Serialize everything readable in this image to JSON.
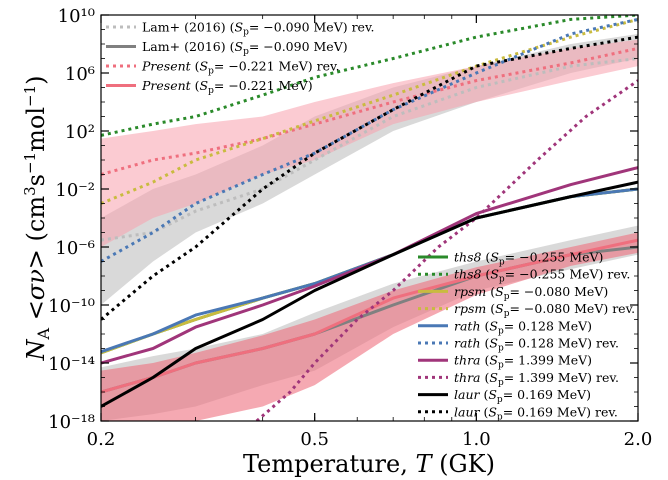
{
  "chart_data": {
    "type": "line",
    "xlabel": "Temperature, T (GK)",
    "ylabel": "N_A <σν> (cm³s⁻¹mol⁻¹)",
    "xscale": "log",
    "yscale": "log",
    "xlim": [
      0.2,
      2.0
    ],
    "ylim": [
      1e-18,
      10000000000.0
    ],
    "x_ticks": [
      0.2,
      0.5,
      1.0,
      2.0
    ],
    "x_tick_labels": [
      "0.2",
      "0.5",
      "1.0",
      "2.0"
    ],
    "y_ticks": [
      1e-18,
      1e-14,
      1e-10,
      1e-06,
      0.01,
      100.0,
      1000000.0,
      10000000000.0
    ],
    "y_tick_labels": [
      "10⁻¹⁸",
      "10⁻¹⁴",
      "10⁻¹⁰",
      "10⁻⁶",
      "10⁻²",
      "10²",
      "10⁶",
      "10¹⁰"
    ],
    "legend_upper": [
      {
        "label": "Lam+ (2016) (S_p= −0.090 MeV) rev.",
        "color": "#bdbdbd",
        "style": "dotted"
      },
      {
        "label": "Lam+ (2016) (S_p= −0.090 MeV)",
        "color": "#808080",
        "style": "solid"
      },
      {
        "label": "Present (S_p= −0.221 MeV) rev.",
        "color": "#ef6f7e",
        "style": "dotted"
      },
      {
        "label": "Present (S_p= −0.221 MeV)",
        "color": "#ef6f7e",
        "style": "solid"
      }
    ],
    "legend_lower": [
      {
        "label": "ths8 (S_p= −0.255 MeV)",
        "color": "#2a8a2a",
        "style": "solid"
      },
      {
        "label": "ths8 (S_p= −0.255 MeV) rev.",
        "color": "#2a8a2a",
        "style": "dotted"
      },
      {
        "label": "rpsm (S_p= −0.080 MeV)",
        "color": "#c9bb3f",
        "style": "solid"
      },
      {
        "label": "rpsm (S_p= −0.080 MeV) rev.",
        "color": "#c9bb3f",
        "style": "dotted"
      },
      {
        "label": "rath (S_p= 0.128 MeV)",
        "color": "#4a78b5",
        "style": "solid"
      },
      {
        "label": "rath (S_p= 0.128 MeV) rev.",
        "color": "#4a78b5",
        "style": "dotted"
      },
      {
        "label": "thra (S_p= 1.399 MeV)",
        "color": "#a0357a",
        "style": "solid"
      },
      {
        "label": "thra (S_p= 1.399 MeV) rev.",
        "color": "#a0357a",
        "style": "dotted"
      },
      {
        "label": "laur (S_p= 0.169 MeV)",
        "color": "#000000",
        "style": "solid"
      },
      {
        "label": "laur (S_p= 0.169 MeV) rev.",
        "color": "#000000",
        "style": "dotted"
      }
    ],
    "bands": [
      {
        "name": "Lam+ (2016) rev. band",
        "color": "#c0c0c0",
        "opacity": 0.6,
        "x": [
          0.2,
          0.25,
          0.3,
          0.4,
          0.5,
          0.7,
          1.0,
          1.5,
          2.0
        ],
        "upper": [
          0.0001,
          0.01,
          0.1,
          10.0,
          1000.0,
          100000.0,
          3000000.0,
          100000000.0,
          500000000.0
        ],
        "lower": [
          1e-10,
          1e-07,
          1e-05,
          0.001,
          0.1,
          100.0,
          10000.0,
          1000000.0,
          10000000.0
        ]
      },
      {
        "name": "Present rev. band",
        "color": "#f7a1ad",
        "opacity": 0.55,
        "x": [
          0.2,
          0.25,
          0.3,
          0.4,
          0.5,
          0.7,
          1.0,
          1.5,
          2.0
        ],
        "upper": [
          30.0,
          100.0,
          300.0,
          1000.0,
          10000.0,
          200000.0,
          3000000.0,
          50000000.0,
          200000000.0
        ],
        "lower": [
          1e-06,
          0.0001,
          0.001,
          0.1,
          1.0,
          300.0,
          10000.0,
          300000.0,
          3000000.0
        ]
      },
      {
        "name": "Lam+ (2016) band",
        "color": "#c0c0c0",
        "opacity": 0.6,
        "x": [
          0.2,
          0.25,
          0.3,
          0.4,
          0.5,
          0.7,
          1.0,
          1.5,
          2.0
        ],
        "upper": [
          5e-15,
          3e-14,
          1e-13,
          1e-12,
          3e-11,
          3e-09,
          1e-07,
          3e-06,
          3e-05
        ],
        "lower": [
          1e-18,
          3e-18,
          1e-17,
          3e-16,
          3e-15,
          3e-12,
          1e-09,
          3e-08,
          3e-07
        ]
      },
      {
        "name": "Present band",
        "color": "#ef6f7e",
        "opacity": 0.6,
        "x": [
          0.2,
          0.25,
          0.3,
          0.4,
          0.5,
          0.7,
          1.0,
          1.5,
          2.0
        ],
        "upper": [
          3e-15,
          1e-14,
          5e-14,
          8e-13,
          1e-11,
          1e-09,
          4e-08,
          1e-06,
          1e-05
        ],
        "lower": [
          1e-18,
          1e-18,
          1e-18,
          1e-17,
          3e-16,
          1e-12,
          5e-10,
          5e-08,
          4e-07
        ]
      }
    ],
    "series": [
      {
        "name": "Lam+ (2016) (S_p= −0.090 MeV) rev.",
        "color": "#bdbdbd",
        "style": "dotted",
        "x": [
          0.2,
          0.25,
          0.3,
          0.4,
          0.5,
          0.7,
          1.0,
          1.5,
          2.0
        ],
        "y": [
          3e-06,
          1e-05,
          0.0003,
          0.01,
          1.0,
          1000.0,
          100000.0,
          3000000.0,
          10000000.0
        ]
      },
      {
        "name": "Lam+ (2016) (S_p= −0.090 MeV)",
        "color": "#808080",
        "style": "solid",
        "x": [
          0.2,
          0.25,
          0.3,
          0.4,
          0.5,
          0.7,
          1.0,
          1.5,
          2.0
        ],
        "y": [
          1e-16,
          1e-15,
          1e-14,
          1e-13,
          1e-12,
          1e-10,
          1e-08,
          3e-07,
          1e-06
        ]
      },
      {
        "name": "Present (S_p= −0.221 MeV) rev.",
        "color": "#ef6f7e",
        "style": "dotted",
        "x": [
          0.2,
          0.25,
          0.3,
          0.4,
          0.5,
          0.7,
          1.0,
          1.5,
          2.0
        ],
        "y": [
          0.1,
          1.0,
          3.0,
          30.0,
          300.0,
          10000.0,
          300000.0,
          5000000.0,
          50000000.0
        ]
      },
      {
        "name": "Present (S_p= −0.221 MeV)",
        "color": "#ef6f7e",
        "style": "solid",
        "x": [
          0.2,
          0.25,
          0.3,
          0.4,
          0.5,
          0.7,
          1.0,
          1.5,
          2.0
        ],
        "y": [
          1e-16,
          1e-15,
          1e-14,
          1e-13,
          1e-12,
          3e-10,
          1e-08,
          3e-07,
          3e-06
        ]
      },
      {
        "name": "ths8 (S_p= −0.255 MeV)",
        "color": "#2a8a2a",
        "style": "solid",
        "x": [
          0.2,
          0.25,
          0.3,
          0.4,
          0.5,
          0.7,
          1.0,
          1.5,
          2.0
        ],
        "y": [
          5e-14,
          1e-12,
          1e-11,
          3e-10,
          3e-09,
          3e-07,
          0.0001,
          0.003,
          0.01
        ]
      },
      {
        "name": "ths8 (S_p= −0.255 MeV) rev.",
        "color": "#2a8a2a",
        "style": "dotted",
        "x": [
          0.2,
          0.25,
          0.3,
          0.4,
          0.5,
          0.7,
          1.0,
          1.5,
          2.0
        ],
        "y": [
          50.0,
          300.0,
          1000.0,
          30000.0,
          500000.0,
          10000000.0,
          300000000.0,
          5000000000.0,
          10000000000.0
        ]
      },
      {
        "name": "rpsm (S_p= −0.080 MeV)",
        "color": "#c9bb3f",
        "style": "solid",
        "x": [
          0.2,
          0.25,
          0.3,
          0.4,
          0.5,
          0.7,
          1.0,
          1.5,
          2.0
        ],
        "y": [
          5e-14,
          1e-12,
          1e-11,
          3e-10,
          3e-09,
          3e-07,
          0.0001,
          0.003,
          0.01
        ]
      },
      {
        "name": "rpsm (S_p= −0.080 MeV) rev.",
        "color": "#c9bb3f",
        "style": "dotted",
        "x": [
          0.2,
          0.25,
          0.3,
          0.4,
          0.5,
          0.7,
          1.0,
          1.5,
          2.0
        ],
        "y": [
          0.001,
          0.03,
          1.0,
          30.0,
          500.0,
          30000.0,
          3000000.0,
          300000000.0,
          5000000000.0
        ]
      },
      {
        "name": "rath (S_p= 0.128 MeV)",
        "color": "#4a78b5",
        "style": "solid",
        "x": [
          0.2,
          0.25,
          0.3,
          0.4,
          0.5,
          0.7,
          1.0,
          1.5,
          2.0
        ],
        "y": [
          6e-14,
          1e-12,
          2e-11,
          3e-10,
          3e-09,
          3e-07,
          0.0001,
          0.003,
          0.01
        ]
      },
      {
        "name": "rath (S_p= 0.128 MeV) rev.",
        "color": "#4a78b5",
        "style": "dotted",
        "x": [
          0.2,
          0.25,
          0.3,
          0.4,
          0.5,
          0.7,
          1.0,
          1.5,
          2.0
        ],
        "y": [
          1e-07,
          1e-05,
          0.001,
          0.1,
          3.0,
          3000.0,
          1000000.0,
          500000000.0,
          5000000000.0
        ]
      },
      {
        "name": "thra (S_p= 1.399 MeV)",
        "color": "#a0357a",
        "style": "solid",
        "x": [
          0.2,
          0.25,
          0.3,
          0.4,
          0.5,
          0.7,
          1.0,
          1.5,
          2.0
        ],
        "y": [
          1e-14,
          1e-13,
          3e-12,
          1e-10,
          2e-09,
          3e-07,
          0.0002,
          0.02,
          0.3
        ]
      },
      {
        "name": "thra (S_p= 1.399 MeV) rev.",
        "color": "#a0357a",
        "style": "dotted",
        "x": [
          0.39,
          0.45,
          0.5,
          0.6,
          0.7,
          0.85,
          1.0,
          1.3,
          1.6,
          2.0
        ],
        "y": [
          1e-18,
          1e-16,
          1e-14,
          1e-11,
          1e-09,
          1e-06,
          0.0001,
          1.0,
          1000.0,
          300000.0
        ]
      },
      {
        "name": "laur (S_p= 0.169 MeV)",
        "color": "#000000",
        "style": "solid",
        "x": [
          0.2,
          0.25,
          0.3,
          0.4,
          0.5,
          0.7,
          1.0,
          1.5,
          2.0
        ],
        "y": [
          1e-17,
          1e-15,
          1e-13,
          1e-11,
          1e-09,
          3e-07,
          0.0001,
          0.003,
          0.03
        ]
      },
      {
        "name": "laur (S_p= 0.169 MeV) rev.",
        "color": "#000000",
        "style": "dotted",
        "x": [
          0.2,
          0.25,
          0.3,
          0.4,
          0.5,
          0.7,
          1.0,
          1.5,
          2.0
        ],
        "y": [
          1e-11,
          1e-08,
          1e-06,
          0.01,
          3.0,
          3000.0,
          3000000.0,
          50000000.0,
          300000000.0
        ]
      }
    ]
  }
}
